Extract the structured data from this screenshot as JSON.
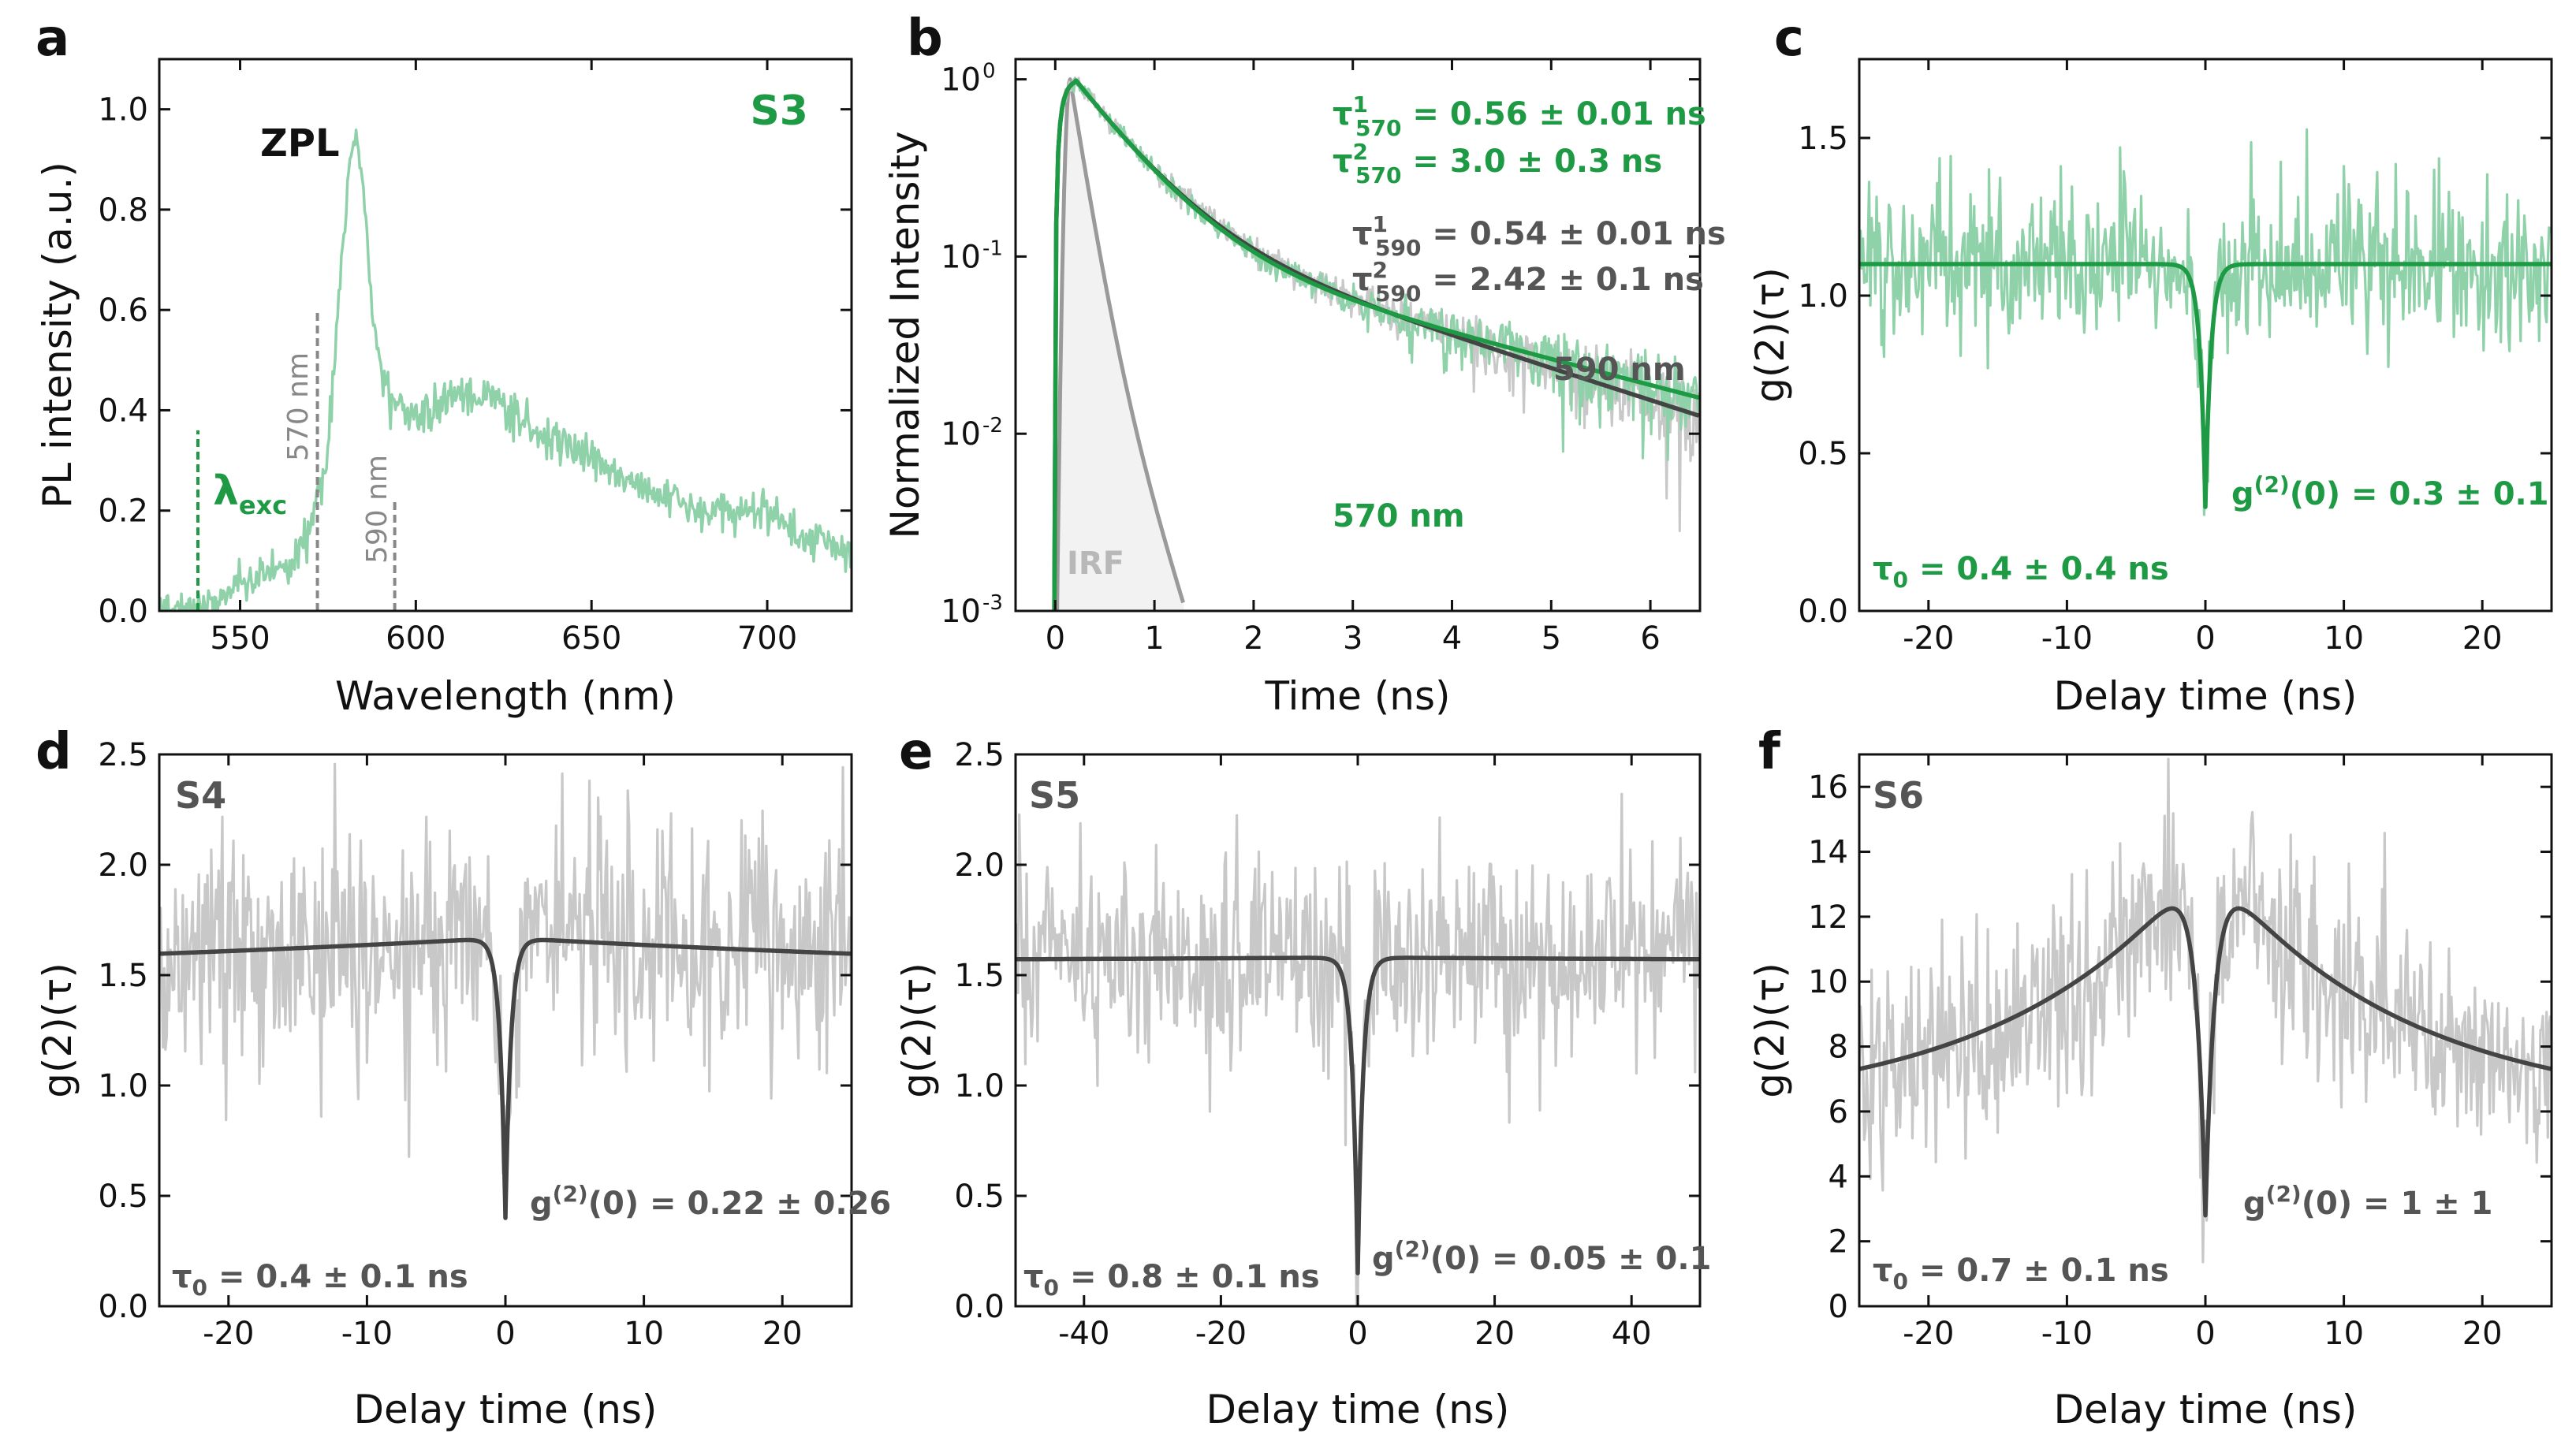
{
  "colors": {
    "green": "#1e9a45",
    "lightgreen": "#8fd1a8",
    "dark": "#444444",
    "light": "#c8c8c8",
    "irf": "#9a9a9a",
    "text": "#111111",
    "labelgray": "#888888"
  },
  "chart_data": [
    {
      "id": "a",
      "panel": "a",
      "type": "line",
      "title": "S3",
      "xlabel": "Wavelength (nm)",
      "ylabel": "PL intensity (a.u.)",
      "xlim": [
        527,
        724
      ],
      "ylim": [
        0,
        1.1
      ],
      "xticks": [
        550,
        600,
        650,
        700
      ],
      "xtick_labels": [
        "550",
        "600",
        "650",
        "700"
      ],
      "yticks": [
        0,
        0.2,
        0.4,
        0.6,
        0.8,
        1.0
      ],
      "ytick_labels": [
        "0.0",
        "0.2",
        "0.4",
        "0.6",
        "0.8",
        "1.0"
      ],
      "series": [
        {
          "name": "PL spectrum",
          "x": [
            530,
            540,
            550,
            560,
            565,
            570,
            575,
            578,
            580,
            582,
            583,
            585,
            588,
            590,
            595,
            600,
            610,
            620,
            630,
            640,
            650,
            660,
            670,
            680,
            690,
            700,
            710,
            720
          ],
          "y": [
            0,
            0.01,
            0.05,
            0.08,
            0.1,
            0.16,
            0.32,
            0.62,
            0.8,
            0.92,
            0.96,
            0.85,
            0.56,
            0.48,
            0.4,
            0.39,
            0.42,
            0.43,
            0.38,
            0.34,
            0.3,
            0.26,
            0.23,
            0.2,
            0.2,
            0.2,
            0.15,
            0.13
          ],
          "color": "lightgreen"
        }
      ],
      "markers": [
        {
          "x": 538,
          "label": "λ",
          "sub": "exc",
          "color": "green"
        },
        {
          "x": 572,
          "label": "570 nm",
          "color": "labelgray"
        },
        {
          "x": 594,
          "label": "590 nm",
          "color": "labelgray"
        }
      ],
      "annotations": [
        {
          "text": "ZPL",
          "x": 563,
          "y": 0.94
        }
      ]
    },
    {
      "id": "b",
      "panel": "b",
      "type": "line",
      "yscale": "log",
      "xlabel": "Time (ns)",
      "ylabel": "Normalized Intensity",
      "xlim": [
        -0.4,
        6.5
      ],
      "ylim": [
        0.001,
        1.3
      ],
      "xticks": [
        0,
        1,
        2,
        3,
        4,
        5,
        6
      ],
      "xtick_labels": [
        "0",
        "1",
        "2",
        "3",
        "4",
        "5",
        "6"
      ],
      "yticks": [
        0.001,
        0.01,
        0.1,
        1
      ],
      "ytick_labels": [
        "10",
        "10",
        "10",
        "10"
      ],
      "ytick_exps": [
        "-3",
        "-2",
        "-1",
        "0"
      ],
      "series": [
        {
          "name": "590 nm",
          "color": "dark",
          "fit": {
            "a1": 0.83,
            "t1": 0.54,
            "a2": 0.17,
            "t2": 2.42,
            "t0": 0.2
          }
        },
        {
          "name": "570 nm",
          "color": "green",
          "fit": {
            "a1": 0.87,
            "t1": 0.56,
            "a2": 0.13,
            "t2": 3.0,
            "t0": 0.2
          }
        },
        {
          "name": "IRF",
          "color": "irf",
          "fit": {
            "t1": 0.12,
            "t0": 0.15
          }
        }
      ],
      "annotations": [
        {
          "base": "τ",
          "sup": "1",
          "sub": "570",
          "rest": " = 0.56 ± 0.01 ns",
          "color": "green"
        },
        {
          "base": "τ",
          "sup": "2",
          "sub": "570",
          "rest": " = 3.0 ± 0.3 ns",
          "color": "green"
        },
        {
          "base": "τ",
          "sup": "1",
          "sub": "590",
          "rest": " = 0.54 ± 0.01 ns",
          "color": "dark"
        },
        {
          "base": "τ",
          "sup": "2",
          "sub": "590",
          "rest": " = 2.42 ± 0.1 ns",
          "color": "dark"
        }
      ],
      "labels": {
        "irf": "IRF",
        "l590": "590 nm",
        "l570": "570 nm"
      }
    },
    {
      "id": "c",
      "panel": "c",
      "type": "line",
      "xlabel": "Delay time (ns)",
      "ylabel": "g(2)(τ)",
      "xlim": [
        -25,
        25
      ],
      "ylim": [
        0,
        1.75
      ],
      "xticks": [
        -20,
        -10,
        0,
        10,
        20
      ],
      "xtick_labels": [
        "-20",
        "-10",
        "0",
        "10",
        "20"
      ],
      "yticks": [
        0,
        0.5,
        1.0,
        1.5
      ],
      "ytick_labels": [
        "0.0",
        "0.5",
        "1.0",
        "1.5"
      ],
      "fit": {
        "baseline": 1.1,
        "g0": 0.33,
        "tau0": 0.4,
        "bunch": 0,
        "tauB": 10
      },
      "noise": {
        "sd": 0.13,
        "seed": 3
      },
      "data_color": "lightgreen",
      "fit_color": "green",
      "g0_text": "(0) = 0.3 ± 0.1",
      "tau_text": " = 0.4 ± 0.4 ns"
    },
    {
      "id": "d",
      "panel": "d",
      "type": "line",
      "title": "S4",
      "xlabel": "Delay time (ns)",
      "ylabel": "g(2)(τ)",
      "xlim": [
        -25,
        25
      ],
      "ylim": [
        0,
        2.5
      ],
      "xticks": [
        -20,
        -10,
        0,
        10,
        20
      ],
      "xtick_labels": [
        "-20",
        "-10",
        "0",
        "10",
        "20"
      ],
      "yticks": [
        0,
        0.5,
        1.0,
        1.5,
        2.0,
        2.5
      ],
      "ytick_labels": [
        "0.0",
        "0.5",
        "1.0",
        "1.5",
        "2.0",
        "2.5"
      ],
      "fit": {
        "baseline": 1.47,
        "g0": 0.4,
        "tau0": 0.4,
        "bunch": 0.2,
        "tauB": 55
      },
      "noise": {
        "sd": 0.28,
        "seed": 4
      },
      "data_color": "light",
      "fit_color": "dark",
      "g0_text": "(0) = 0.22 ± 0.26",
      "tau_text": " = 0.4 ± 0.1 ns"
    },
    {
      "id": "e",
      "panel": "e",
      "type": "line",
      "title": "S5",
      "xlabel": "Delay time (ns)",
      "ylabel": "g(2)(τ)",
      "xlim": [
        -50,
        50
      ],
      "ylim": [
        0,
        2.5
      ],
      "xticks": [
        -40,
        -20,
        0,
        20,
        40
      ],
      "xtick_labels": [
        "-40",
        "-20",
        "0",
        "20",
        "40"
      ],
      "yticks": [
        0,
        0.5,
        1.0,
        1.5,
        2.0,
        2.5
      ],
      "ytick_labels": [
        "0.0",
        "0.5",
        "1.0",
        "1.5",
        "2.0",
        "2.5"
      ],
      "fit": {
        "baseline": 1.56,
        "g0": 0.15,
        "tau0": 0.8,
        "bunch": 0.02,
        "tauB": 100
      },
      "noise": {
        "sd": 0.25,
        "seed": 5
      },
      "data_color": "light",
      "fit_color": "dark",
      "g0_text": "(0) = 0.05 ± 0.1",
      "tau_text": " = 0.8 ± 0.1 ns"
    },
    {
      "id": "f",
      "panel": "f",
      "type": "line",
      "title": "S6",
      "xlabel": "Delay time (ns)",
      "ylabel": "g(2)(τ)",
      "xlim": [
        -25,
        25
      ],
      "ylim": [
        0,
        17
      ],
      "xticks": [
        -20,
        -10,
        0,
        10,
        20
      ],
      "xtick_labels": [
        "-20",
        "-10",
        "0",
        "10",
        "20"
      ],
      "yticks": [
        0,
        2,
        4,
        6,
        8,
        10,
        12,
        14,
        16
      ],
      "ytick_labels": [
        "0",
        "2",
        "4",
        "6",
        "8",
        "10",
        "12",
        "14",
        "16"
      ],
      "fit": {
        "baseline": 6.0,
        "g0": 2.8,
        "tau0": 0.7,
        "bunch": 7.8,
        "tauB": 14
      },
      "noise": {
        "sd": 1.6,
        "seed": 6
      },
      "data_color": "light",
      "fit_color": "dark",
      "g0_text": "(0) = 1 ± 1",
      "tau_text": " = 0.7 ± 0.1 ns"
    }
  ]
}
